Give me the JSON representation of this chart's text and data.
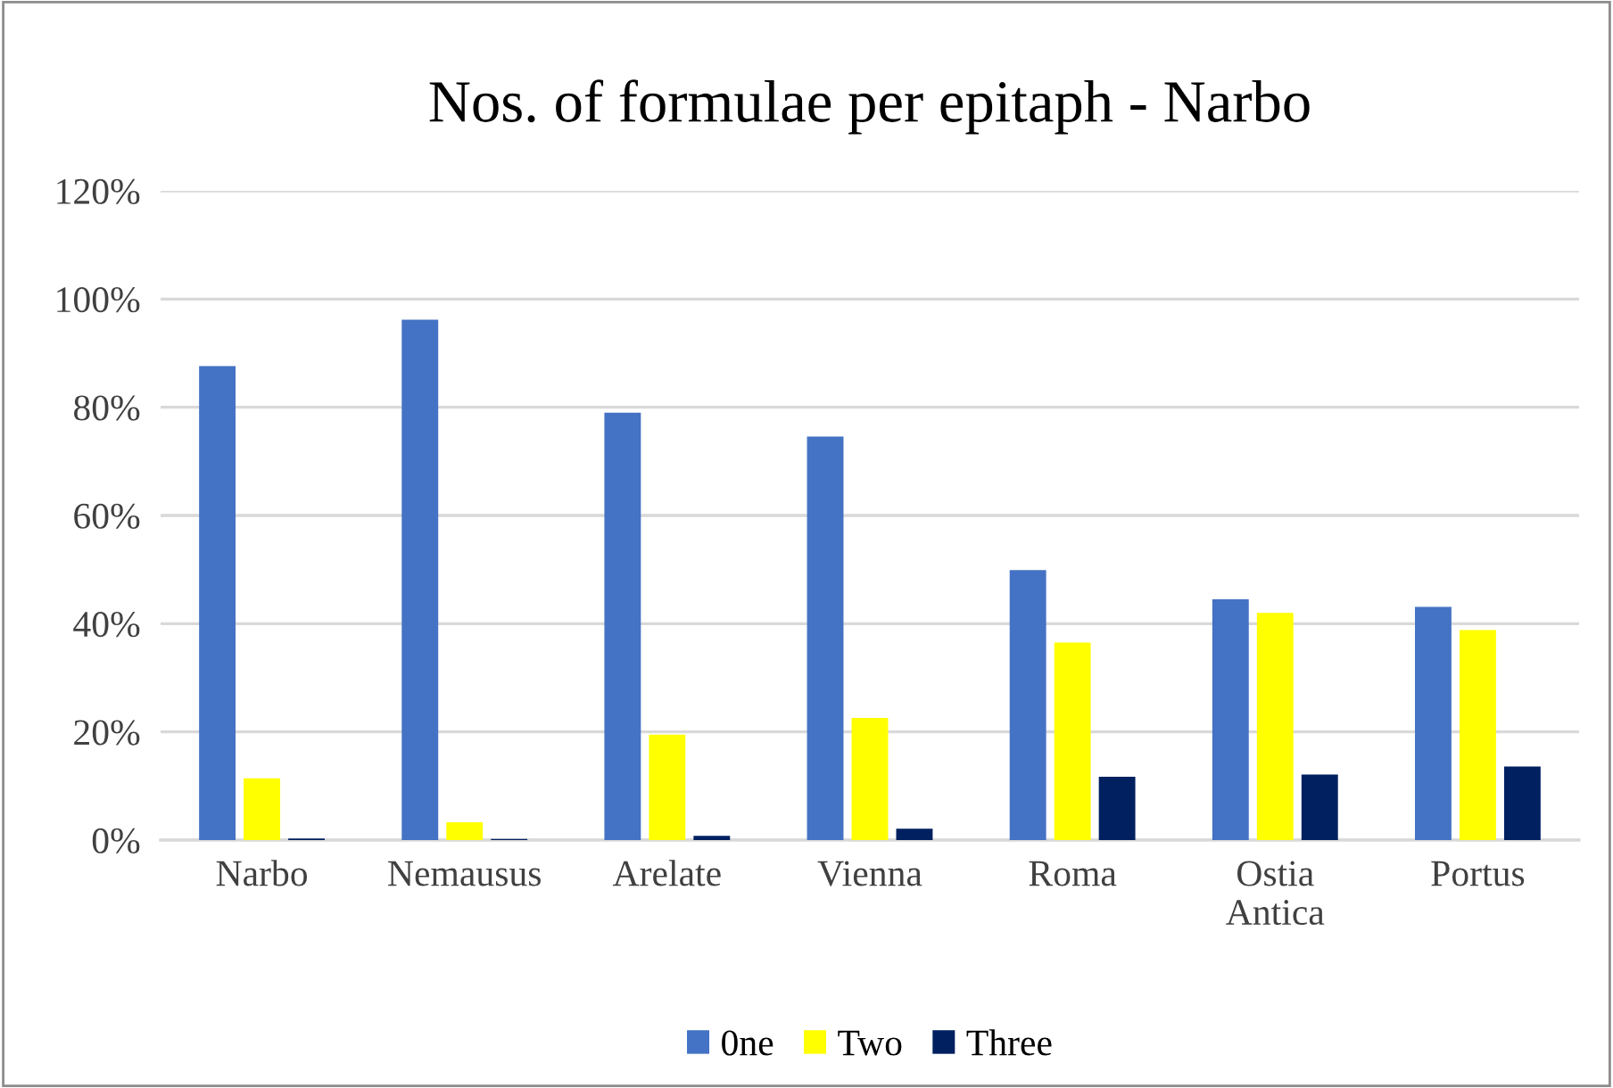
{
  "chart_data": {
    "type": "bar",
    "title": "Nos. of formulae per epitaph - Narbo",
    "categories": [
      "Narbo",
      "Nemausus",
      "Arelate",
      "Vienna",
      "Roma",
      "Ostia\nAntica",
      "Portus"
    ],
    "series": [
      {
        "name": "0ne",
        "color": "#4472c4",
        "values": [
          87.6,
          96.2,
          79.0,
          74.6,
          49.9,
          44.5,
          43.1
        ]
      },
      {
        "name": "Two",
        "color": "#ffff00",
        "values": [
          11.4,
          3.3,
          19.5,
          22.6,
          36.5,
          42.0,
          38.8
        ]
      },
      {
        "name": "Three",
        "color": "#002060",
        "values": [
          0.3,
          0.2,
          0.8,
          2.1,
          11.7,
          12.1,
          13.6
        ]
      }
    ],
    "ylim": [
      0,
      120
    ],
    "yticks": [
      {
        "value": 0,
        "label": "0%"
      },
      {
        "value": 20,
        "label": "20%"
      },
      {
        "value": 40,
        "label": "40%"
      },
      {
        "value": 60,
        "label": "60%"
      },
      {
        "value": 80,
        "label": "80%"
      },
      {
        "value": 100,
        "label": "100%"
      },
      {
        "value": 120,
        "label": "120%"
      }
    ],
    "grid": "y",
    "legend": "bottom"
  }
}
